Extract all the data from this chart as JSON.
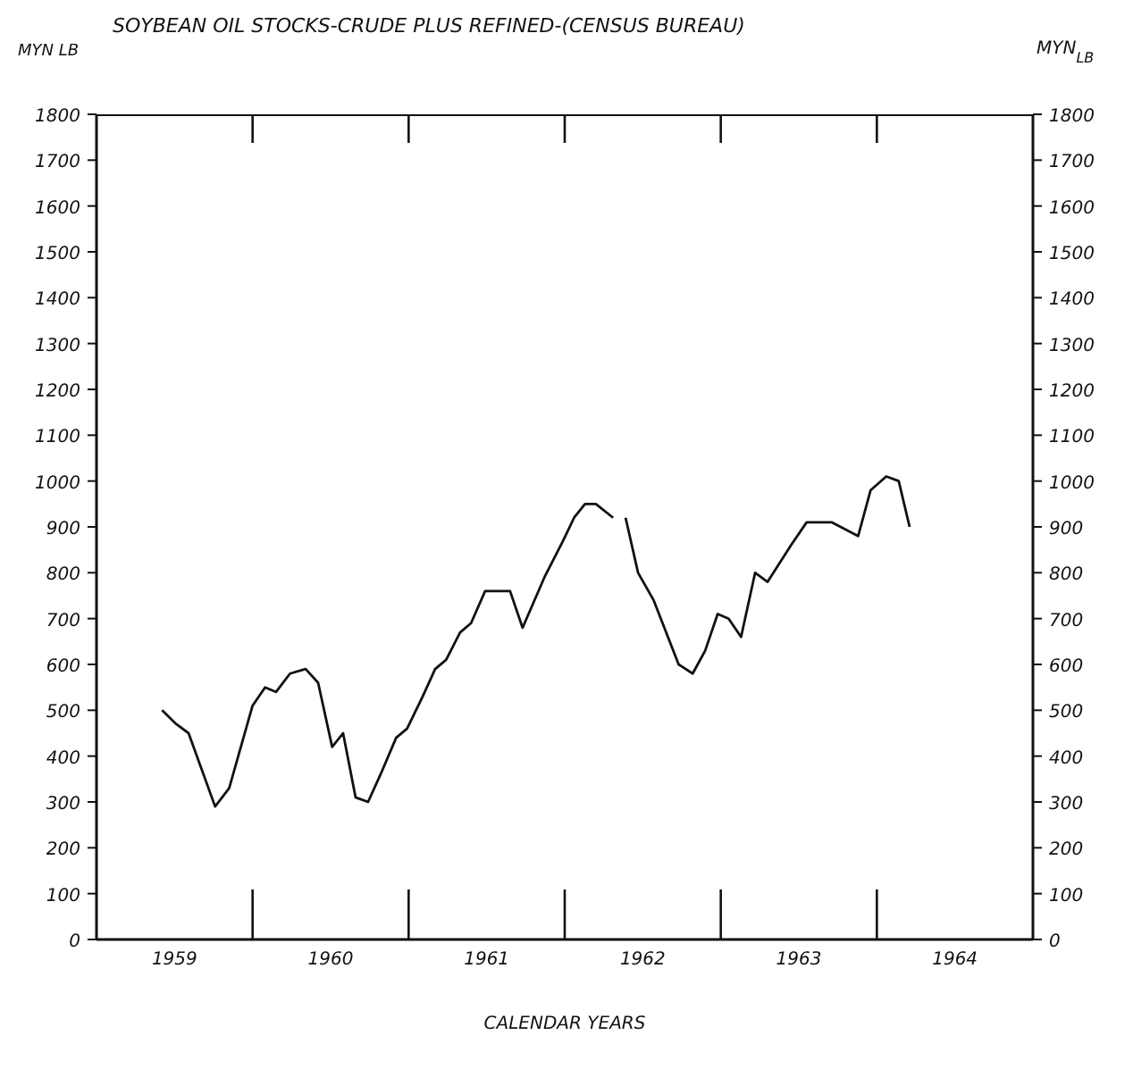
{
  "chart_data": {
    "type": "line",
    "title": "SOYBEAN OIL STOCKS-CRUDE PLUS REFINED-(CENSUS BUREAU)",
    "xlabel": "CALENDAR YEARS",
    "ylabel": "MYN LB",
    "y2label": "MYN$_{LB}$",
    "x": [
      1959.42,
      1959.51,
      1959.59,
      1959.76,
      1959.85,
      1960.0,
      1960.08,
      1960.15,
      1960.24,
      1960.34,
      1960.42,
      1960.51,
      1960.58,
      1960.66,
      1960.74,
      1960.82,
      1960.92,
      1960.99,
      1961.09,
      1961.17,
      1961.24,
      1961.33,
      1961.4,
      1961.49,
      1961.65,
      1961.73,
      1961.87,
      1961.99,
      1962.06,
      1962.13,
      1962.2,
      1962.31,
      1962.35,
      1962.39,
      1962.47,
      1962.57,
      1962.73,
      1962.82,
      1962.9,
      1962.98,
      1963.05,
      1963.13,
      1963.22,
      1963.3,
      1963.45,
      1963.55,
      1963.71,
      1963.88,
      1963.96,
      1964.06,
      1964.14,
      1964.21
    ],
    "series": [
      {
        "color": "#111111",
        "values": [
          500,
          470,
          450,
          290,
          330,
          510,
          550,
          540,
          580,
          590,
          560,
          420,
          450,
          310,
          300,
          360,
          440,
          460,
          530,
          590,
          610,
          670,
          690,
          760,
          760,
          680,
          790,
          870,
          920,
          950,
          950,
          920,
          null,
          920,
          800,
          740,
          600,
          580,
          630,
          710,
          700,
          660,
          800,
          780,
          860,
          910,
          910,
          880,
          980,
          1010,
          1000,
          900
        ]
      }
    ],
    "xlim": [
      1959,
      1965
    ],
    "xticks": [
      {
        "value": 1959.5,
        "label": "1959"
      },
      {
        "value": 1960,
        "label": null
      },
      {
        "value": 1960.5,
        "label": "1960"
      },
      {
        "value": 1961,
        "label": null
      },
      {
        "value": 1961.5,
        "label": "1961"
      },
      {
        "value": 1962,
        "label": null
      },
      {
        "value": 1962.5,
        "label": "1962"
      },
      {
        "value": 1963,
        "label": null
      },
      {
        "value": 1963.5,
        "label": "1963"
      },
      {
        "value": 1964,
        "label": null
      },
      {
        "value": 1964.5,
        "label": "1964"
      }
    ],
    "ylim": [
      0,
      1800
    ],
    "yticks": [
      0,
      100,
      200,
      300,
      400,
      500,
      600,
      700,
      800,
      900,
      1000,
      1100,
      1200,
      1300,
      1400,
      1500,
      1600,
      1700,
      1800
    ],
    "y2lim": [
      0,
      1800
    ],
    "y2ticks": [
      0,
      100,
      200,
      300,
      400,
      500,
      600,
      700,
      800,
      900,
      1000,
      1100,
      1200,
      1300,
      1400,
      1500,
      1600,
      1700,
      1800
    ],
    "grid": false,
    "legend": false,
    "marker": "none",
    "line_style": "solid"
  }
}
